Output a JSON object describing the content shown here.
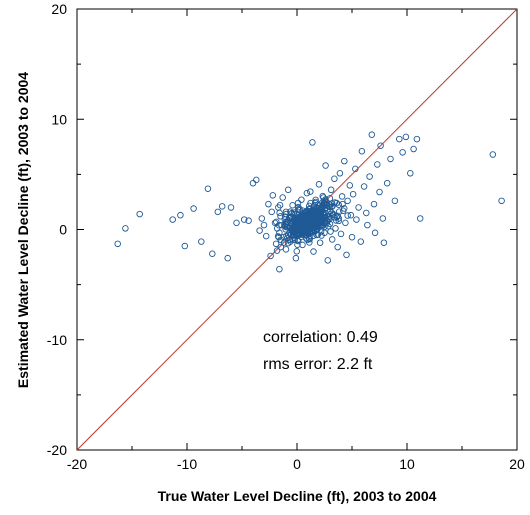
{
  "chart_data": {
    "type": "scatter",
    "title": "",
    "xlabel": "True Water Level Decline (ft), 2003 to 2004",
    "ylabel": "Estimated Water Level Decline (ft), 2003 to 2004",
    "xlim": [
      -20,
      20
    ],
    "ylim": [
      -20,
      20
    ],
    "xticks": [
      -20,
      -10,
      0,
      10,
      20
    ],
    "yticks": [
      -20,
      -10,
      0,
      10,
      20
    ],
    "x_tick_labels": [
      "-20",
      "-10",
      "0",
      "10",
      "20"
    ],
    "y_tick_labels": [
      "-20",
      "-10",
      "0",
      "10",
      "20"
    ],
    "grid": false,
    "reference_line": {
      "type": "1:1",
      "from": [
        -20,
        -20
      ],
      "to": [
        20,
        20
      ]
    },
    "annotations": {
      "correlation": "correlation: 0.49",
      "rms": "rms error:  2.2 ft"
    },
    "colors": {
      "points": "#1f5a96",
      "reference_line": "#c0392b",
      "axes": "#000000"
    },
    "points": [
      [
        -16.3,
        -1.3
      ],
      [
        -15.6,
        0.1
      ],
      [
        -14.3,
        1.4
      ],
      [
        -11.3,
        0.9
      ],
      [
        -10.6,
        1.3
      ],
      [
        -10.2,
        -1.5
      ],
      [
        -9.4,
        1.9
      ],
      [
        -8.7,
        -1.1
      ],
      [
        -8.1,
        3.7
      ],
      [
        -7.7,
        -2.2
      ],
      [
        -7.2,
        1.6
      ],
      [
        -6.8,
        2.1
      ],
      [
        -6.3,
        -2.6
      ],
      [
        -6.0,
        2.0
      ],
      [
        -5.5,
        0.6
      ],
      [
        -4.8,
        0.9
      ],
      [
        -4.4,
        0.8
      ],
      [
        -4.0,
        4.2
      ],
      [
        -3.7,
        4.5
      ],
      [
        -3.4,
        -0.1
      ],
      [
        -3.2,
        1.0
      ],
      [
        -3.0,
        0.4
      ],
      [
        -2.8,
        -0.6
      ],
      [
        -2.6,
        2.3
      ],
      [
        -2.4,
        -2.4
      ],
      [
        -2.3,
        1.6
      ],
      [
        -2.2,
        3.1
      ],
      [
        -2.0,
        0.6
      ],
      [
        -1.9,
        -1.3
      ],
      [
        -1.8,
        0.1
      ],
      [
        -1.7,
        2.0
      ],
      [
        -1.6,
        -0.3
      ],
      [
        -1.6,
        -3.6
      ],
      [
        -1.5,
        1.2
      ],
      [
        -1.4,
        0.4
      ],
      [
        -1.3,
        2.9
      ],
      [
        -1.2,
        -0.7
      ],
      [
        -1.1,
        0.9
      ],
      [
        -1.0,
        -1.8
      ],
      [
        -1.0,
        1.6
      ],
      [
        -0.9,
        0.2
      ],
      [
        -0.8,
        -0.5
      ],
      [
        -0.8,
        3.6
      ],
      [
        -0.7,
        1.1
      ],
      [
        -0.6,
        -1.1
      ],
      [
        -0.5,
        0.5
      ],
      [
        -0.4,
        2.2
      ],
      [
        -0.4,
        -0.2
      ],
      [
        -0.3,
        1.4
      ],
      [
        -0.2,
        -0.9
      ],
      [
        -0.1,
        0.8
      ],
      [
        -0.1,
        -2.6
      ],
      [
        0.0,
        0.3
      ],
      [
        0.1,
        1.8
      ],
      [
        0.2,
        -0.4
      ],
      [
        0.3,
        0.9
      ],
      [
        0.4,
        2.7
      ],
      [
        0.5,
        -1.4
      ],
      [
        0.6,
        0.6
      ],
      [
        0.7,
        1.3
      ],
      [
        0.8,
        -0.2
      ],
      [
        0.9,
        3.3
      ],
      [
        1.0,
        0.4
      ],
      [
        1.1,
        -0.8
      ],
      [
        1.2,
        1.9
      ],
      [
        1.3,
        0.2
      ],
      [
        1.4,
        7.9
      ],
      [
        1.5,
        -2.0
      ],
      [
        1.6,
        1.1
      ],
      [
        1.7,
        2.5
      ],
      [
        1.8,
        -0.5
      ],
      [
        1.9,
        0.9
      ],
      [
        2.0,
        4.1
      ],
      [
        2.1,
        -1.2
      ],
      [
        2.2,
        1.6
      ],
      [
        2.3,
        0.3
      ],
      [
        2.4,
        2.9
      ],
      [
        2.5,
        -0.3
      ],
      [
        2.6,
        5.8
      ],
      [
        2.7,
        1.2
      ],
      [
        2.8,
        -2.8
      ],
      [
        2.9,
        2.1
      ],
      [
        3.0,
        0.5
      ],
      [
        3.1,
        3.6
      ],
      [
        3.2,
        -0.9
      ],
      [
        3.3,
        1.4
      ],
      [
        3.4,
        4.6
      ],
      [
        3.5,
        0.1
      ],
      [
        3.6,
        2.4
      ],
      [
        3.7,
        -1.6
      ],
      [
        3.8,
        1.0
      ],
      [
        3.9,
        5.1
      ],
      [
        4.0,
        -0.4
      ],
      [
        4.1,
        3.0
      ],
      [
        4.2,
        1.7
      ],
      [
        4.3,
        6.2
      ],
      [
        4.4,
        0.6
      ],
      [
        4.5,
        -2.3
      ],
      [
        4.6,
        2.6
      ],
      [
        4.8,
        4.0
      ],
      [
        4.9,
        1.3
      ],
      [
        5.0,
        -0.7
      ],
      [
        5.1,
        3.2
      ],
      [
        5.3,
        5.5
      ],
      [
        5.4,
        0.9
      ],
      [
        5.6,
        2.0
      ],
      [
        5.8,
        -1.1
      ],
      [
        5.9,
        7.1
      ],
      [
        6.1,
        3.9
      ],
      [
        6.3,
        1.5
      ],
      [
        6.4,
        0.4
      ],
      [
        6.6,
        4.8
      ],
      [
        6.8,
        8.6
      ],
      [
        7.0,
        2.3
      ],
      [
        7.1,
        -0.3
      ],
      [
        7.3,
        5.9
      ],
      [
        7.5,
        3.4
      ],
      [
        7.6,
        7.6
      ],
      [
        7.8,
        1.0
      ],
      [
        7.9,
        -1.2
      ],
      [
        8.2,
        4.2
      ],
      [
        8.5,
        6.4
      ],
      [
        8.9,
        2.6
      ],
      [
        9.3,
        8.2
      ],
      [
        9.6,
        7.0
      ],
      [
        9.9,
        8.4
      ],
      [
        10.3,
        5.1
      ],
      [
        10.6,
        7.3
      ],
      [
        10.9,
        8.2
      ],
      [
        11.2,
        1.0
      ],
      [
        17.8,
        6.8
      ],
      [
        18.6,
        2.6
      ]
    ]
  }
}
